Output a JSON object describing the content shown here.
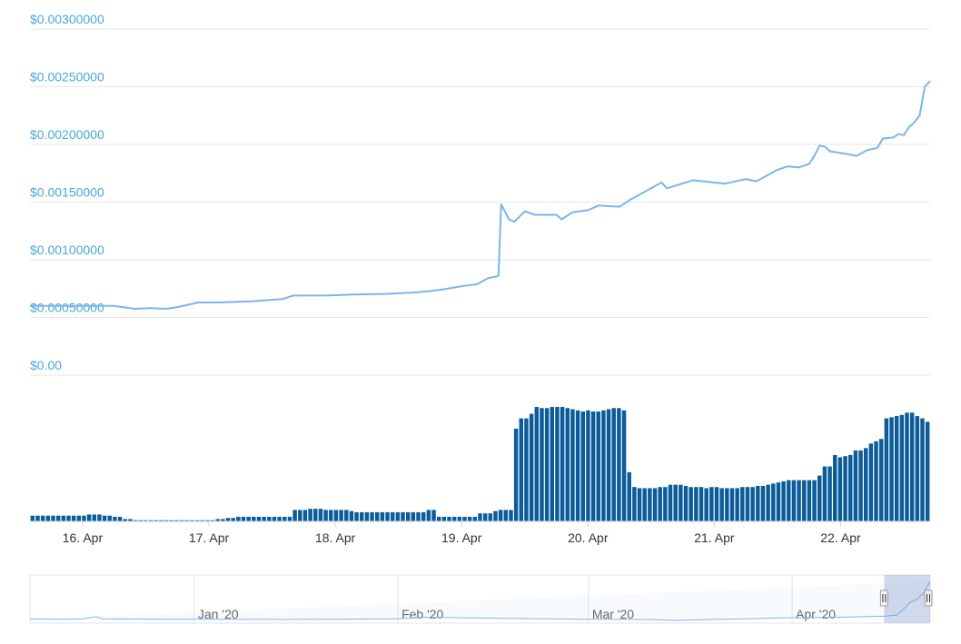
{
  "colors": {
    "price_line": "#7cb5ec",
    "volume_bar": "#0b5c99",
    "y_label": "#4aa8d8",
    "grid": "#e6e6e6",
    "navigator_mask": "#c3cfe6"
  },
  "chart_data": [
    {
      "type": "line",
      "name": "price",
      "grid": true,
      "ylim": [
        0,
        0.003
      ],
      "xlim": [
        "2020-04-15 14:00",
        "2020-04-22 17:00"
      ],
      "y_tick_labels": [
        "$0.00",
        "$0.00050000",
        "$0.00100000",
        "$0.00150000",
        "$0.00200000",
        "$0.00250000",
        "$0.00300000"
      ],
      "y_tick_values": [
        0,
        0.0005,
        0.001,
        0.0015,
        0.002,
        0.0025,
        0.003
      ],
      "x_tick_labels": [
        "16. Apr",
        "17. Apr",
        "18. Apr",
        "19. Apr",
        "20. Apr",
        "21. Apr",
        "22. Apr"
      ],
      "x_tick_values": [
        "2020-04-16",
        "2020-04-17",
        "2020-04-18",
        "2020-04-19",
        "2020-04-20",
        "2020-04-21",
        "2020-04-22"
      ],
      "series": [
        {
          "values": [
            [
              "2020-04-15 14:00",
              0.0006
            ],
            [
              "2020-04-16 00:00",
              0.0006
            ],
            [
              "2020-04-16 06:00",
              0.0006
            ],
            [
              "2020-04-16 10:00",
              0.000575
            ],
            [
              "2020-04-16 13:00",
              0.00058
            ],
            [
              "2020-04-16 16:00",
              0.000575
            ],
            [
              "2020-04-16 18:00",
              0.00059
            ],
            [
              "2020-04-16 22:00",
              0.00063
            ],
            [
              "2020-04-17 02:00",
              0.00063
            ],
            [
              "2020-04-17 08:00",
              0.00064
            ],
            [
              "2020-04-17 14:00",
              0.00066
            ],
            [
              "2020-04-17 16:00",
              0.00069
            ],
            [
              "2020-04-17 22:00",
              0.00069
            ],
            [
              "2020-04-18 04:00",
              0.0007
            ],
            [
              "2020-04-18 10:00",
              0.000705
            ],
            [
              "2020-04-18 16:00",
              0.00072
            ],
            [
              "2020-04-18 20:00",
              0.00074
            ],
            [
              "2020-04-19 00:00",
              0.00077
            ],
            [
              "2020-04-19 03:00",
              0.00079
            ],
            [
              "2020-04-19 05:00",
              0.00084
            ],
            [
              "2020-04-19 07:00",
              0.00086
            ],
            [
              "2020-04-19 07:30",
              0.00148
            ],
            [
              "2020-04-19 09:00",
              0.00135
            ],
            [
              "2020-04-19 10:00",
              0.00133
            ],
            [
              "2020-04-19 12:00",
              0.00142
            ],
            [
              "2020-04-19 14:00",
              0.00139
            ],
            [
              "2020-04-19 18:00",
              0.00139
            ],
            [
              "2020-04-19 19:00",
              0.00135
            ],
            [
              "2020-04-19 21:00",
              0.00141
            ],
            [
              "2020-04-20 00:00",
              0.00143
            ],
            [
              "2020-04-20 02:00",
              0.00147
            ],
            [
              "2020-04-20 06:00",
              0.00146
            ],
            [
              "2020-04-20 08:00",
              0.00152
            ],
            [
              "2020-04-20 14:00",
              0.00167
            ],
            [
              "2020-04-20 15:00",
              0.00162
            ],
            [
              "2020-04-20 20:00",
              0.00169
            ],
            [
              "2020-04-21 02:00",
              0.00166
            ],
            [
              "2020-04-21 06:00",
              0.0017
            ],
            [
              "2020-04-21 08:00",
              0.00168
            ],
            [
              "2020-04-21 12:00",
              0.00178
            ],
            [
              "2020-04-21 14:00",
              0.00181
            ],
            [
              "2020-04-21 16:00",
              0.0018
            ],
            [
              "2020-04-21 18:00",
              0.00183
            ],
            [
              "2020-04-21 19:00",
              0.0019
            ],
            [
              "2020-04-21 20:00",
              0.00199
            ],
            [
              "2020-04-21 21:00",
              0.00198
            ],
            [
              "2020-04-21 22:00",
              0.00194
            ],
            [
              "2020-04-22 02:00",
              0.00191
            ],
            [
              "2020-04-22 03:00",
              0.0019
            ],
            [
              "2020-04-22 05:00",
              0.00195
            ],
            [
              "2020-04-22 07:00",
              0.00197
            ],
            [
              "2020-04-22 08:00",
              0.00205
            ],
            [
              "2020-04-22 10:00",
              0.00206
            ],
            [
              "2020-04-22 11:00",
              0.00209
            ],
            [
              "2020-04-22 12:00",
              0.00208
            ],
            [
              "2020-04-22 13:00",
              0.00215
            ],
            [
              "2020-04-22 14:00",
              0.00219
            ],
            [
              "2020-04-22 15:00",
              0.00225
            ],
            [
              "2020-04-22 16:00",
              0.0025
            ],
            [
              "2020-04-22 17:00",
              0.00255
            ]
          ]
        }
      ]
    },
    {
      "type": "bar",
      "name": "volume",
      "grid": false,
      "note": "relative volume, no axis labels shown",
      "ylim": [
        0,
        100
      ],
      "categories_start": "2020-04-15 14:00",
      "interval_hours": 1,
      "values": [
        5,
        5,
        5,
        5,
        5,
        5,
        5,
        5,
        5,
        5,
        5,
        6,
        6,
        6,
        5,
        5,
        4,
        4,
        2,
        2,
        1,
        1,
        1,
        1,
        1,
        1,
        1,
        1,
        1,
        1,
        1,
        1,
        1,
        1,
        1,
        1,
        2,
        2,
        3,
        3,
        4,
        4,
        4,
        4,
        4,
        4,
        4,
        4,
        4,
        4,
        4,
        10,
        10,
        10,
        11,
        11,
        11,
        10,
        10,
        10,
        10,
        10,
        9,
        8,
        8,
        8,
        8,
        8,
        8,
        8,
        8,
        8,
        8,
        8,
        8,
        8,
        8,
        10,
        10,
        4,
        4,
        4,
        4,
        4,
        4,
        4,
        4,
        7,
        7,
        7,
        9,
        10,
        10,
        10,
        81,
        90,
        90,
        94,
        100,
        99,
        99,
        100,
        100,
        100,
        99,
        98,
        97,
        96,
        97,
        96,
        96,
        97,
        98,
        99,
        99,
        97,
        43,
        30,
        29,
        29,
        29,
        29,
        30,
        30,
        32,
        32,
        32,
        31,
        30,
        30,
        30,
        29,
        30,
        30,
        29,
        29,
        29,
        29,
        30,
        30,
        30,
        31,
        31,
        32,
        33,
        34,
        35,
        36,
        36,
        36,
        36,
        36,
        36,
        40,
        48,
        48,
        58,
        56,
        57,
        58,
        62,
        62,
        64,
        68,
        70,
        72,
        90,
        91,
        92,
        93,
        95,
        95,
        92,
        90,
        87
      ]
    },
    {
      "type": "area",
      "name": "navigator",
      "x_tick_labels": [
        "Jan '20",
        "Feb '20",
        "Mar '20",
        "Apr '20"
      ],
      "x_tick_values": [
        "2020-01-01",
        "2020-02-01",
        "2020-03-01",
        "2020-04-01"
      ],
      "xlim": [
        "2019-12-07",
        "2020-04-22"
      ],
      "selection": [
        "2020-04-15",
        "2020-04-22"
      ],
      "values": [
        [
          "2019-12-07",
          0.00043
        ],
        [
          "2019-12-12",
          0.00041
        ],
        [
          "2019-12-15",
          0.00043
        ],
        [
          "2019-12-17",
          0.00055
        ],
        [
          "2019-12-18",
          0.00043
        ],
        [
          "2019-12-25",
          0.00042
        ],
        [
          "2020-01-01",
          0.00041
        ],
        [
          "2020-01-15",
          0.0004
        ],
        [
          "2020-02-01",
          0.00044
        ],
        [
          "2020-02-05",
          0.00052
        ],
        [
          "2020-02-10",
          0.0005
        ],
        [
          "2020-02-20",
          0.00045
        ],
        [
          "2020-03-01",
          0.00041
        ],
        [
          "2020-03-10",
          0.0004
        ],
        [
          "2020-03-14",
          0.00035
        ],
        [
          "2020-03-25",
          0.00044
        ],
        [
          "2020-04-01",
          0.0005
        ],
        [
          "2020-04-08",
          0.00052
        ],
        [
          "2020-04-15",
          0.00058
        ],
        [
          "2020-04-17",
          0.00064
        ],
        [
          "2020-04-19",
          0.00135
        ],
        [
          "2020-04-20",
          0.0015
        ],
        [
          "2020-04-21",
          0.00185
        ],
        [
          "2020-04-22",
          0.0025
        ]
      ]
    }
  ]
}
